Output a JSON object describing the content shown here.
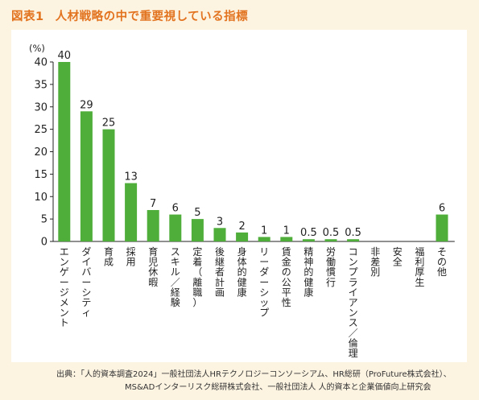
{
  "figure": {
    "label": "図表1",
    "title": "人材戦略の中で重要視している指標"
  },
  "chart_data": {
    "type": "bar",
    "unit": "(%)",
    "ylim": [
      0,
      40
    ],
    "yticks": [
      0,
      5,
      10,
      15,
      20,
      25,
      30,
      35,
      40
    ],
    "grid": false,
    "categories": [
      "エンゲージメント",
      "ダイバーシティ",
      "育成",
      "採用",
      "育児休暇",
      "スキル／経験",
      "定着（離職）",
      "後継者計画",
      "身体的健康",
      "リーダーシップ",
      "賃金の公平性",
      "精神的健康",
      "労働慣行",
      "コンプライアンス／倫理",
      "非差別",
      "安全",
      "福利厚生",
      "その他"
    ],
    "values": [
      40,
      29,
      25,
      13,
      7,
      6,
      5,
      3,
      2,
      1,
      1,
      0.5,
      0.5,
      0.5,
      null,
      null,
      null,
      6
    ],
    "value_labels": [
      "40",
      "29",
      "25",
      "13",
      "7",
      "6",
      "5",
      "3",
      "2",
      "1",
      "1",
      "0.5",
      "0.5",
      "0.5",
      "",
      "",
      "",
      "6"
    ],
    "bar_color": "#4fae3a"
  },
  "source": {
    "line1": "出典：「人的資本調査2024」一般社団法人HRテクノロジーコンソーシアム、HR総研（ProFuture株式会社）、",
    "line2": "MS&ADインターリスク総研株式会社、一般社団法人 人的資本と企業価値向上研究会"
  }
}
